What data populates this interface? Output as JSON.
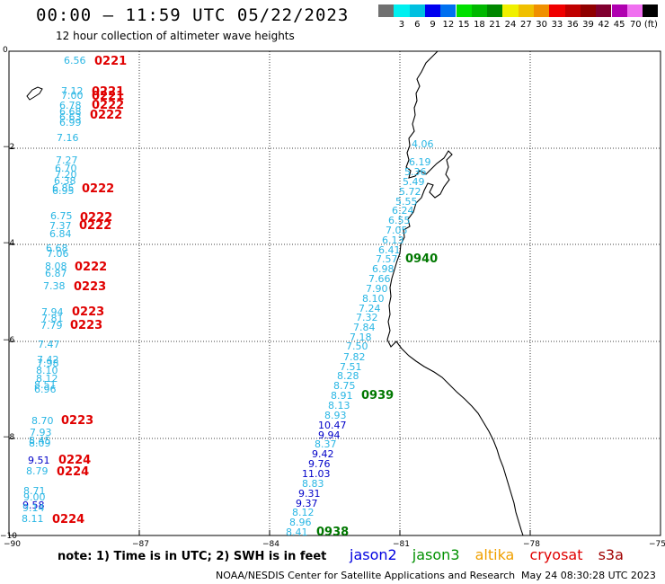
{
  "title": "00:00 – 11:59 UTC 05/22/2023",
  "subtitle": "12 hour collection of altimeter wave heights",
  "legend": {
    "colors": [
      "#707070",
      "#00f0f0",
      "#00c0e0",
      "#0000f0",
      "#0070f0",
      "#00e000",
      "#00b800",
      "#008800",
      "#f0f000",
      "#f0c000",
      "#f09000",
      "#f00000",
      "#c00000",
      "#900000",
      "#800030",
      "#b000b0",
      "#f070f0",
      "#000000"
    ],
    "labels": [
      "3",
      "6",
      "9",
      "12",
      "15",
      "18",
      "21",
      "24",
      "27",
      "30",
      "33",
      "36",
      "39",
      "42",
      "45",
      "70 (ft)"
    ]
  },
  "axes": {
    "y_labels": [
      "0",
      "−2",
      "−4",
      "−6",
      "−8",
      "−10"
    ],
    "x_labels": [
      "−90",
      "−87",
      "−84",
      "−81",
      "−78",
      "−75"
    ]
  },
  "swh_color_light": "#29b6e4",
  "swh_color_dark": "#0000c8",
  "time_color_red": "#e00000",
  "time_color_green": "#007800",
  "waves_left": [
    [
      "6.56",
      "l",
      71,
      67
    ],
    [
      "7.12",
      "l",
      68,
      101
    ],
    [
      "7.00",
      "l",
      68,
      106
    ],
    [
      "6.78",
      "l",
      66,
      117
    ],
    [
      "6.68",
      "l",
      66,
      124
    ],
    [
      "6.63",
      "l",
      66,
      130
    ],
    [
      "6.99",
      "l",
      66,
      136
    ],
    [
      "7.16",
      "l",
      63,
      153
    ],
    [
      "7.27",
      "l",
      62,
      178
    ],
    [
      "6.70",
      "l",
      61,
      187
    ],
    [
      "7.20",
      "l",
      61,
      194
    ],
    [
      "6.38",
      "l",
      60,
      201
    ],
    [
      "6.85",
      "l",
      58,
      209
    ],
    [
      "6.95",
      "l",
      58,
      212
    ],
    [
      "6.75",
      "l",
      56,
      240
    ],
    [
      "7.37",
      "l",
      55,
      251
    ],
    [
      "6.84",
      "l",
      55,
      260
    ],
    [
      "6.68",
      "l",
      51,
      276
    ],
    [
      "7.06",
      "l",
      52,
      282
    ],
    [
      "8.08",
      "l",
      50,
      296
    ],
    [
      "6.87",
      "l",
      50,
      304
    ],
    [
      "7.38",
      "l",
      48,
      318
    ],
    [
      "7.94",
      "l",
      46,
      347
    ],
    [
      "7.81",
      "l",
      46,
      354
    ],
    [
      "7.79",
      "l",
      45,
      362
    ],
    [
      "7.47",
      "l",
      42,
      383
    ],
    [
      "7.42",
      "l",
      41,
      400
    ],
    [
      "7.98",
      "l",
      41,
      404
    ],
    [
      "8.10",
      "l",
      40,
      412
    ],
    [
      "8.12",
      "l",
      40,
      421
    ],
    [
      "8.51",
      "l",
      38,
      428
    ],
    [
      "6.96",
      "l",
      38,
      433
    ],
    [
      "8.70",
      "l",
      35,
      468
    ],
    [
      "7.93",
      "l",
      33,
      481
    ],
    [
      "8.45",
      "l",
      32,
      490
    ],
    [
      "8.09",
      "l",
      32,
      493
    ],
    [
      "9.51",
      "d",
      31,
      512
    ],
    [
      "8.79",
      "l",
      29,
      524
    ],
    [
      "8.71",
      "l",
      26,
      546
    ],
    [
      "9.00",
      "l",
      26,
      553
    ],
    [
      "9.58",
      "d",
      25,
      562
    ],
    [
      "9.14",
      "l",
      25,
      565
    ],
    [
      "8.11",
      "l",
      24,
      577
    ]
  ],
  "waves_track": [
    [
      "4.06",
      "l",
      458,
      160
    ],
    [
      "6.19",
      "l",
      455,
      180
    ],
    [
      "5.36",
      "l",
      450,
      191
    ],
    [
      "5.49",
      "l",
      448,
      202
    ],
    [
      "5.72",
      "l",
      444,
      213
    ],
    [
      "5.55",
      "l",
      440,
      224
    ],
    [
      "6.24",
      "l",
      436,
      234
    ],
    [
      "6.55",
      "l",
      432,
      245
    ],
    [
      "7.05",
      "l",
      429,
      256
    ],
    [
      "6.13",
      "l",
      425,
      267
    ],
    [
      "6.41",
      "l",
      421,
      278
    ],
    [
      "7.57",
      "l",
      418,
      288
    ],
    [
      "6.98",
      "l",
      414,
      299
    ],
    [
      "7.66",
      "l",
      410,
      310
    ],
    [
      "7.90",
      "l",
      407,
      321
    ],
    [
      "8.10",
      "l",
      403,
      332
    ],
    [
      "7.24",
      "l",
      399,
      343
    ],
    [
      "7.32",
      "l",
      396,
      353
    ],
    [
      "7.84",
      "l",
      393,
      364
    ],
    [
      "7.18",
      "l",
      389,
      375
    ],
    [
      "7.50",
      "l",
      385,
      385
    ],
    [
      "7.82",
      "l",
      382,
      397
    ],
    [
      "7.51",
      "l",
      378,
      408
    ],
    [
      "8.28",
      "l",
      375,
      418
    ],
    [
      "8.75",
      "l",
      371,
      429
    ],
    [
      "8.91",
      "l",
      368,
      440
    ],
    [
      "8.13",
      "l",
      365,
      451
    ],
    [
      "8.93",
      "l",
      361,
      462
    ],
    [
      "10.47",
      "d",
      354,
      473
    ],
    [
      "9.94",
      "d",
      354,
      484
    ],
    [
      "8.37",
      "l",
      350,
      494
    ],
    [
      "9.42",
      "d",
      347,
      505
    ],
    [
      "9.76",
      "d",
      343,
      516
    ],
    [
      "11.03",
      "d",
      336,
      527
    ],
    [
      "8.83",
      "l",
      336,
      538
    ],
    [
      "9.31",
      "d",
      332,
      549
    ],
    [
      "9.37",
      "d",
      329,
      560
    ],
    [
      "8.12",
      "l",
      325,
      570
    ],
    [
      "8.96",
      "l",
      322,
      581
    ],
    [
      "8.41",
      "l",
      318,
      592
    ]
  ],
  "times": [
    [
      "0221",
      "r",
      105,
      67
    ],
    [
      "0221",
      "r",
      102,
      101
    ],
    [
      "0221",
      "r",
      102,
      106
    ],
    [
      "0222",
      "r",
      102,
      116
    ],
    [
      "0222",
      "r",
      100,
      127
    ],
    [
      "0222",
      "r",
      91,
      209
    ],
    [
      "0222",
      "r",
      89,
      241
    ],
    [
      "0222",
      "r",
      88,
      250
    ],
    [
      "0222",
      "r",
      83,
      296
    ],
    [
      "0223",
      "r",
      82,
      318
    ],
    [
      "0223",
      "r",
      80,
      346
    ],
    [
      "0223",
      "r",
      78,
      361
    ],
    [
      "0223",
      "r",
      68,
      467
    ],
    [
      "0224",
      "r",
      65,
      511
    ],
    [
      "0224",
      "r",
      63,
      524
    ],
    [
      "0224",
      "r",
      58,
      577
    ],
    [
      "0940",
      "g",
      451,
      287
    ],
    [
      "0939",
      "g",
      402,
      439
    ],
    [
      "0938",
      "g",
      352,
      591
    ]
  ],
  "note": "note:  1) Time is in UTC;  2) SWH is in feet",
  "satellites": [
    {
      "name": "jason2",
      "color": "#0000e0"
    },
    {
      "name": "jason3",
      "color": "#009000"
    },
    {
      "name": "altika",
      "color": "#f0a000"
    },
    {
      "name": "cryosat",
      "color": "#e00000"
    },
    {
      "name": "s3a",
      "color": "#a00000"
    }
  ],
  "credit": "NOAA/NESDIS Center for Satellite Applications and Research",
  "timestamp": "May 24 08:30:28 UTC 2023"
}
